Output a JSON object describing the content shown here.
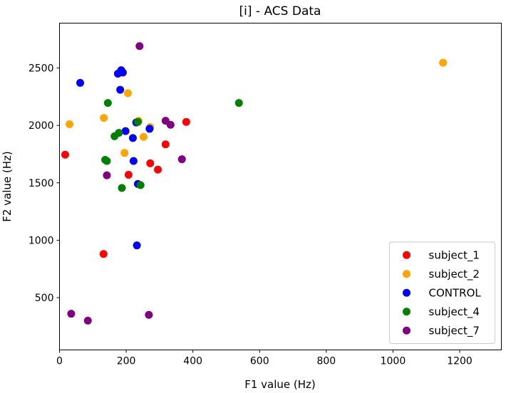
{
  "chart_data": {
    "type": "scatter",
    "title": "[i] - ACS Data",
    "xlabel": "F1 value (Hz)",
    "ylabel": "F2 value (Hz)",
    "xlim": [
      0,
      1325
    ],
    "ylim": [
      45,
      2890
    ],
    "xticks": [
      0,
      200,
      400,
      600,
      800,
      1000,
      1200
    ],
    "yticks": [
      500,
      1000,
      1500,
      2000,
      2500
    ],
    "grid": false,
    "legend_position": "lower-right",
    "series": [
      {
        "name": "subject_1",
        "color": "#ff0000",
        "points": [
          [
            17,
            1745
          ],
          [
            132,
            880
          ],
          [
            207,
            1570
          ],
          [
            272,
            1670
          ],
          [
            295,
            1615
          ],
          [
            318,
            1835
          ],
          [
            380,
            2030
          ]
        ]
      },
      {
        "name": "subject_2",
        "color": "#ffa500",
        "points": [
          [
            30,
            2010
          ],
          [
            133,
            2065
          ],
          [
            195,
            1760
          ],
          [
            205,
            2280
          ],
          [
            237,
            2040
          ],
          [
            252,
            1900
          ],
          [
            272,
            1985
          ],
          [
            1150,
            2545
          ]
        ]
      },
      {
        "name": "CONTROL",
        "color": "#0000ff",
        "points": [
          [
            62,
            2370
          ],
          [
            175,
            2450
          ],
          [
            182,
            2310
          ],
          [
            185,
            2480
          ],
          [
            190,
            2460
          ],
          [
            198,
            1950
          ],
          [
            220,
            1890
          ],
          [
            222,
            1690
          ],
          [
            230,
            2025
          ],
          [
            232,
            955
          ],
          [
            235,
            1490
          ],
          [
            270,
            1970
          ]
        ]
      },
      {
        "name": "subject_4",
        "color": "#008000",
        "points": [
          [
            137,
            1700
          ],
          [
            142,
            1690
          ],
          [
            145,
            2195
          ],
          [
            165,
            1905
          ],
          [
            178,
            1935
          ],
          [
            187,
            1455
          ],
          [
            235,
            2030
          ],
          [
            243,
            1480
          ],
          [
            538,
            2195
          ]
        ]
      },
      {
        "name": "subject_7",
        "color": "#800080",
        "points": [
          [
            35,
            360
          ],
          [
            85,
            300
          ],
          [
            142,
            1565
          ],
          [
            240,
            2690
          ],
          [
            268,
            350
          ],
          [
            318,
            2040
          ],
          [
            333,
            2005
          ],
          [
            367,
            1705
          ]
        ]
      }
    ]
  }
}
